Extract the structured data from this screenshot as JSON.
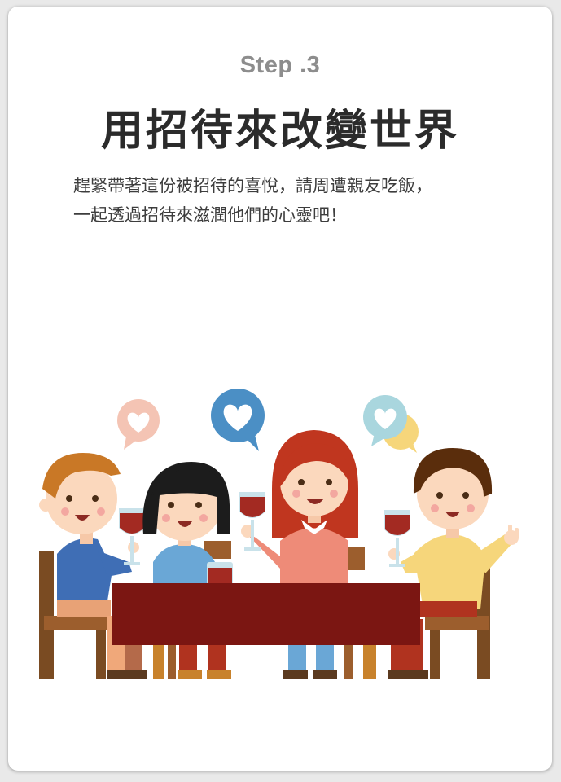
{
  "card": {
    "step_label": "Step .3",
    "title": "用招待來改變世界",
    "description_lines": [
      "趕緊帶著這份被招待的喜悅，請周遭親友吃飯，",
      "一起透過招待來滋潤他們的心靈吧！"
    ]
  },
  "illustration": {
    "icons": [
      "heart-bubble-icon",
      "heart-bubble-icon",
      "heart-bubble-icon"
    ],
    "colors": {
      "table": "#7b1612",
      "wine": "#a32a22",
      "bubble_pink": "#f4c4b4",
      "bubble_blue": "#4b8fc5",
      "bubble_teal": "#a9d6de",
      "bubble_yellow": "#f6d67b"
    }
  }
}
